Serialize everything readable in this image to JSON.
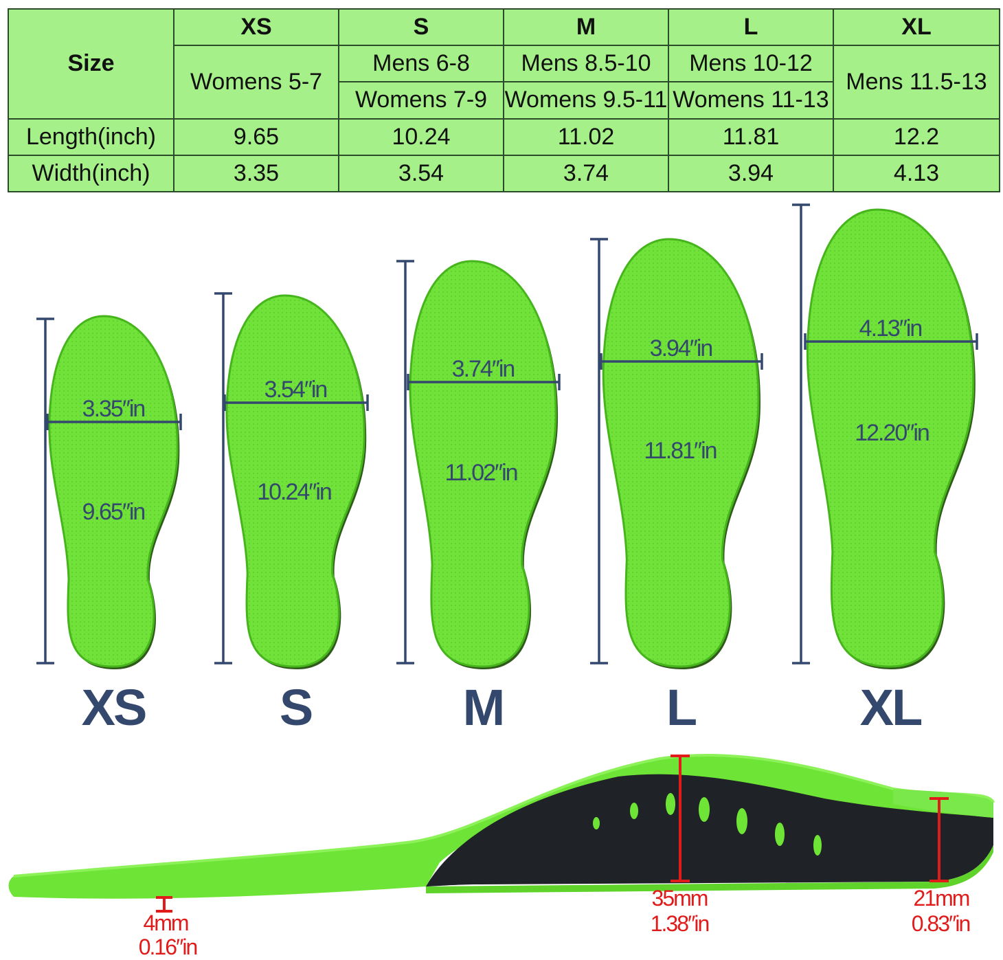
{
  "size_table": {
    "header_label": "Size",
    "sizes": [
      "XS",
      "S",
      "M",
      "L",
      "XL"
    ],
    "mens": [
      "",
      "Mens 6-8",
      "Mens 8.5-10",
      "Mens 10-12",
      "Mens 11.5-13"
    ],
    "womens": [
      "Womens 5-7",
      "Womens 7-9",
      "Womens 9.5-11",
      "Womens 11-13",
      ""
    ],
    "length_label": "Length(inch)",
    "lengths": [
      "9.65",
      "10.24",
      "11.02",
      "11.81",
      "12.2"
    ],
    "width_label": "Width(inch)",
    "widths": [
      "3.35",
      "3.54",
      "3.74",
      "3.94",
      "4.13"
    ]
  },
  "insoles": [
    {
      "size": "XS",
      "width_label": "3.35″in",
      "length_label": "9.65″in"
    },
    {
      "size": "S",
      "width_label": "3.54″in",
      "length_label": "10.24″in"
    },
    {
      "size": "M",
      "width_label": "3.74″in",
      "length_label": "11.02″in"
    },
    {
      "size": "L",
      "width_label": "3.94″in",
      "length_label": "11.81″in"
    },
    {
      "size": "XL",
      "width_label": "4.13″in",
      "length_label": "12.20″in"
    }
  ],
  "side_view": {
    "toe": {
      "mm": "4mm",
      "inch": "0.16″in"
    },
    "arch": {
      "mm": "35mm",
      "inch": "1.38″in"
    },
    "heel": {
      "mm": "21mm",
      "inch": "0.83″in"
    }
  },
  "colors": {
    "table_bg": "#a5f089",
    "insole_green": "#6ee536",
    "insole_edge": "#46b51c",
    "dimension_navy": "#34486e",
    "measure_red": "#e11a1a",
    "base_black": "#1f2226"
  }
}
